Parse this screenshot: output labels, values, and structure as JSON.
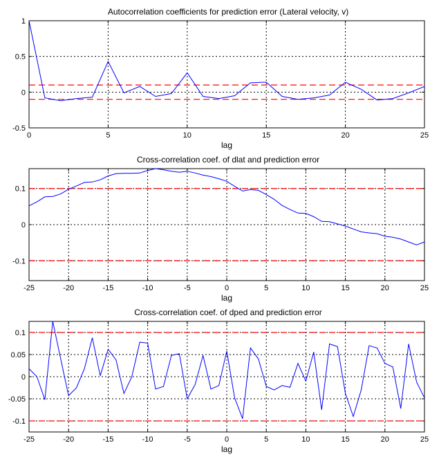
{
  "chart_data": [
    {
      "type": "line",
      "title": "Autocorrelation coefficients for prediction error (Lateral velocity, v)",
      "xlabel": "lag",
      "ylabel": "",
      "xlim": [
        0,
        25
      ],
      "ylim": [
        -0.5,
        1
      ],
      "xticks": [
        0,
        5,
        10,
        15,
        20,
        25
      ],
      "yticks": [
        -0.5,
        0,
        0.5,
        1
      ],
      "ytick_labels": [
        "-0.5",
        "0",
        "0.5",
        "1"
      ],
      "grid": true,
      "confidence_bounds": [
        0.1,
        -0.1
      ],
      "series_color": "#0000ff",
      "bound_color": "#ff0000",
      "x": [
        0,
        1,
        2,
        3,
        4,
        5,
        6,
        7,
        8,
        9,
        10,
        11,
        12,
        13,
        14,
        15,
        16,
        17,
        18,
        19,
        20,
        21,
        22,
        23,
        24,
        25
      ],
      "values": [
        1.0,
        -0.08,
        -0.12,
        -0.09,
        -0.07,
        0.43,
        -0.01,
        0.08,
        -0.06,
        -0.02,
        0.27,
        -0.06,
        -0.09,
        -0.05,
        0.13,
        0.14,
        -0.06,
        -0.1,
        -0.08,
        -0.04,
        0.14,
        0.04,
        -0.11,
        -0.09,
        -0.01,
        0.08
      ]
    },
    {
      "type": "line",
      "title": "Cross-correlation coef. of dlat and prediction error",
      "xlabel": "lag",
      "ylabel": "",
      "xlim": [
        -25,
        25
      ],
      "ylim": [
        -0.155,
        0.155
      ],
      "xticks": [
        -25,
        -20,
        -15,
        -10,
        -5,
        0,
        5,
        10,
        15,
        20,
        25
      ],
      "yticks": [
        -0.1,
        0,
        0.1
      ],
      "ytick_labels": [
        "-0.1",
        "0",
        "0.1"
      ],
      "grid": true,
      "confidence_bounds": [
        0.1,
        -0.1
      ],
      "series_color": "#0000ff",
      "bound_color": "#ff0000",
      "x": [
        -25,
        -24,
        -23,
        -22,
        -21,
        -20,
        -19,
        -18,
        -17,
        -16,
        -15,
        -14,
        -13,
        -12,
        -11,
        -10,
        -9,
        -8,
        -7,
        -6,
        -5,
        -4,
        -3,
        -2,
        -1,
        0,
        1,
        2,
        3,
        4,
        5,
        6,
        7,
        8,
        9,
        10,
        11,
        12,
        13,
        14,
        15,
        16,
        17,
        18,
        19,
        20,
        21,
        22,
        23,
        24,
        25
      ],
      "values": [
        0.052,
        0.063,
        0.077,
        0.078,
        0.085,
        0.098,
        0.107,
        0.117,
        0.118,
        0.124,
        0.135,
        0.141,
        0.142,
        0.142,
        0.143,
        0.15,
        0.155,
        0.152,
        0.148,
        0.145,
        0.148,
        0.143,
        0.137,
        0.133,
        0.127,
        0.12,
        0.106,
        0.093,
        0.097,
        0.095,
        0.083,
        0.07,
        0.053,
        0.042,
        0.032,
        0.031,
        0.022,
        0.009,
        0.008,
        0.002,
        -0.004,
        -0.012,
        -0.02,
        -0.023,
        -0.025,
        -0.032,
        -0.035,
        -0.04,
        -0.048,
        -0.056,
        -0.048
      ]
    },
    {
      "type": "line",
      "title": "Cross-correlation coef. of dped and prediction error",
      "xlabel": "lag",
      "ylabel": "",
      "xlim": [
        -25,
        25
      ],
      "ylim": [
        -0.125,
        0.125
      ],
      "xticks": [
        -25,
        -20,
        -15,
        -10,
        -5,
        0,
        5,
        10,
        15,
        20,
        25
      ],
      "yticks": [
        -0.1,
        -0.05,
        0,
        0.05,
        0.1
      ],
      "ytick_labels": [
        "-0.1",
        "-0.05",
        "0",
        "0.05",
        "0.1"
      ],
      "grid": true,
      "confidence_bounds": [
        0.1,
        -0.1
      ],
      "series_color": "#0000ff",
      "bound_color": "#ff0000",
      "x": [
        -25,
        -24,
        -23,
        -22,
        -21,
        -20,
        -19,
        -18,
        -17,
        -16,
        -15,
        -14,
        -13,
        -12,
        -11,
        -10,
        -9,
        -8,
        -7,
        -6,
        -5,
        -4,
        -3,
        -2,
        -1,
        0,
        1,
        2,
        3,
        4,
        5,
        6,
        7,
        8,
        9,
        10,
        11,
        12,
        13,
        14,
        15,
        16,
        17,
        18,
        19,
        20,
        21,
        22,
        23,
        24,
        25
      ],
      "values": [
        0.018,
        0.0,
        -0.052,
        0.125,
        0.04,
        -0.043,
        -0.025,
        0.018,
        0.088,
        0.002,
        0.062,
        0.038,
        -0.038,
        0.0,
        0.078,
        0.076,
        -0.028,
        -0.022,
        0.048,
        0.052,
        -0.05,
        -0.018,
        0.048,
        -0.028,
        -0.02,
        0.058,
        -0.048,
        -0.095,
        0.065,
        0.04,
        -0.022,
        -0.03,
        -0.02,
        -0.024,
        0.03,
        -0.01,
        0.056,
        -0.075,
        0.074,
        0.068,
        -0.038,
        -0.09,
        -0.03,
        0.07,
        0.065,
        0.03,
        0.022,
        -0.072,
        0.074,
        -0.012,
        -0.048
      ]
    }
  ]
}
